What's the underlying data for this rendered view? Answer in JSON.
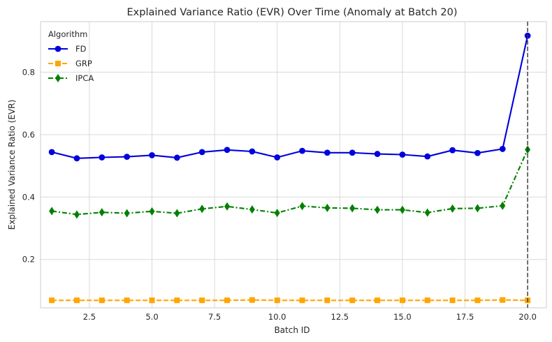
{
  "chart_data": {
    "type": "line",
    "title": "Explained Variance Ratio (EVR) Over Time (Anomaly at Batch 20)",
    "xlabel": "Batch ID",
    "ylabel": "Explained Variance Ratio (EVR)",
    "xlim": [
      0.55,
      20.75
    ],
    "ylim": [
      0.045,
      0.962
    ],
    "xticks": [
      2.5,
      5.0,
      7.5,
      10.0,
      12.5,
      15.0,
      17.5,
      20.0
    ],
    "xtick_labels": [
      "2.5",
      "5.0",
      "7.5",
      "10.0",
      "12.5",
      "15.0",
      "17.5",
      "20.0"
    ],
    "yticks": [
      0.2,
      0.4,
      0.6,
      0.8
    ],
    "ytick_labels": [
      "0.2",
      "0.4",
      "0.6",
      "0.8"
    ],
    "grid": true,
    "legend": {
      "title": "Algorithm",
      "position": "top-left"
    },
    "annotations": [
      {
        "type": "vertical-line",
        "x": 20,
        "style": "dashed",
        "color": "#333333"
      }
    ],
    "x": [
      1,
      2,
      3,
      4,
      5,
      6,
      7,
      8,
      9,
      10,
      11,
      12,
      13,
      14,
      15,
      16,
      17,
      18,
      19,
      20
    ],
    "series": [
      {
        "name": "FD",
        "color": "#0000dd",
        "marker": "circle",
        "linestyle": "solid",
        "values": [
          0.544,
          0.524,
          0.527,
          0.529,
          0.534,
          0.526,
          0.544,
          0.551,
          0.546,
          0.527,
          0.548,
          0.542,
          0.542,
          0.538,
          0.536,
          0.53,
          0.55,
          0.541,
          0.554,
          0.917
        ]
      },
      {
        "name": "GRP",
        "color": "#ffa500",
        "marker": "square",
        "linestyle": "dashed",
        "values": [
          0.069,
          0.069,
          0.069,
          0.069,
          0.069,
          0.069,
          0.069,
          0.069,
          0.07,
          0.069,
          0.069,
          0.069,
          0.069,
          0.069,
          0.069,
          0.069,
          0.069,
          0.069,
          0.07,
          0.069
        ]
      },
      {
        "name": "IPCA",
        "color": "#008000",
        "marker": "diamond",
        "linestyle": "dashdot",
        "values": [
          0.355,
          0.344,
          0.351,
          0.348,
          0.354,
          0.348,
          0.362,
          0.37,
          0.36,
          0.349,
          0.371,
          0.365,
          0.364,
          0.359,
          0.359,
          0.35,
          0.363,
          0.364,
          0.372,
          0.552
        ]
      }
    ]
  }
}
